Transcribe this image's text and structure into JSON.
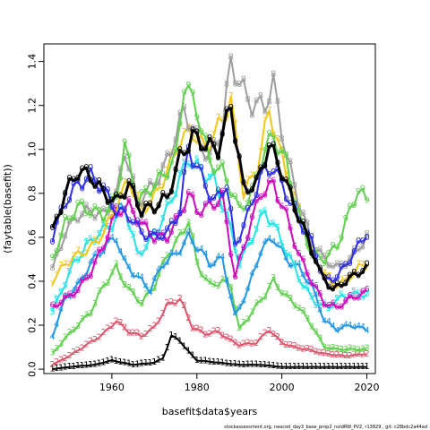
{
  "chart_data": {
    "type": "line",
    "title": "",
    "xlabel": "basefit$data$years",
    "ylabel": "(faytable(basefit))",
    "xlim": [
      1944,
      2022
    ],
    "ylim": [
      -0.02,
      1.48
    ],
    "x_ticks": [
      1960,
      1980,
      2000,
      2020
    ],
    "y_ticks": [
      0.0,
      0.2,
      0.4,
      0.6,
      0.8,
      1.0,
      1.2,
      1.4
    ],
    "x_tick_labels": [
      "1960",
      "1980",
      "2000",
      "2020"
    ],
    "y_tick_labels": [
      "0.0",
      "0.2",
      "0.4",
      "0.6",
      "0.8",
      "1.0",
      "1.2",
      "1.4"
    ],
    "grid": false,
    "legend": "none",
    "footer": "stockassessment.org, neacod_day3_base_prop2_noIdRW_PV2, r13829 , git: c28bdc2a44ad",
    "x_start": 1946,
    "x_end": 2020,
    "series": [
      {
        "label": "1",
        "color": "#000000",
        "lwd": 2,
        "knots": [
          [
            1946,
            0.0
          ],
          [
            1950,
            0.01
          ],
          [
            1956,
            0.02
          ],
          [
            1960,
            0.04
          ],
          [
            1965,
            0.02
          ],
          [
            1970,
            0.03
          ],
          [
            1972,
            0.05
          ],
          [
            1974,
            0.15
          ],
          [
            1976,
            0.13
          ],
          [
            1978,
            0.08
          ],
          [
            1980,
            0.04
          ],
          [
            1985,
            0.03
          ],
          [
            1990,
            0.02
          ],
          [
            1995,
            0.02
          ],
          [
            2000,
            0.01
          ],
          [
            2010,
            0.01
          ],
          [
            2020,
            0.01
          ]
        ]
      },
      {
        "label": "2",
        "color": "#DF536B",
        "lwd": 2,
        "knots": [
          [
            1946,
            0.02
          ],
          [
            1950,
            0.06
          ],
          [
            1954,
            0.11
          ],
          [
            1958,
            0.16
          ],
          [
            1961,
            0.22
          ],
          [
            1964,
            0.17
          ],
          [
            1967,
            0.15
          ],
          [
            1970,
            0.19
          ],
          [
            1973,
            0.29
          ],
          [
            1976,
            0.32
          ],
          [
            1979,
            0.19
          ],
          [
            1982,
            0.16
          ],
          [
            1985,
            0.17
          ],
          [
            1988,
            0.13
          ],
          [
            1990,
            0.11
          ],
          [
            1994,
            0.12
          ],
          [
            1997,
            0.18
          ],
          [
            2000,
            0.12
          ],
          [
            2003,
            0.1
          ],
          [
            2006,
            0.09
          ],
          [
            2010,
            0.07
          ],
          [
            2015,
            0.06
          ],
          [
            2020,
            0.07
          ]
        ]
      },
      {
        "label": "3",
        "color": "#61D04F",
        "lwd": 2,
        "knots": [
          [
            1946,
            0.07
          ],
          [
            1949,
            0.14
          ],
          [
            1952,
            0.2
          ],
          [
            1955,
            0.26
          ],
          [
            1958,
            0.38
          ],
          [
            1961,
            0.46
          ],
          [
            1964,
            0.36
          ],
          [
            1967,
            0.3
          ],
          [
            1970,
            0.38
          ],
          [
            1973,
            0.52
          ],
          [
            1976,
            0.6
          ],
          [
            1978,
            0.68
          ],
          [
            1980,
            0.48
          ],
          [
            1983,
            0.38
          ],
          [
            1986,
            0.4
          ],
          [
            1988,
            0.38
          ],
          [
            1990,
            0.18
          ],
          [
            1993,
            0.26
          ],
          [
            1996,
            0.34
          ],
          [
            1998,
            0.4
          ],
          [
            2001,
            0.33
          ],
          [
            2004,
            0.28
          ],
          [
            2007,
            0.2
          ],
          [
            2010,
            0.1
          ],
          [
            2013,
            0.09
          ],
          [
            2016,
            0.09
          ],
          [
            2020,
            0.09
          ]
        ]
      },
      {
        "label": "4",
        "color": "#2297E6",
        "lwd": 2,
        "knots": [
          [
            1946,
            0.15
          ],
          [
            1949,
            0.32
          ],
          [
            1952,
            0.38
          ],
          [
            1955,
            0.48
          ],
          [
            1958,
            0.55
          ],
          [
            1961,
            0.6
          ],
          [
            1963,
            0.48
          ],
          [
            1966,
            0.42
          ],
          [
            1969,
            0.36
          ],
          [
            1972,
            0.48
          ],
          [
            1975,
            0.52
          ],
          [
            1978,
            0.6
          ],
          [
            1980,
            0.56
          ],
          [
            1983,
            0.48
          ],
          [
            1986,
            0.5
          ],
          [
            1989,
            0.24
          ],
          [
            1992,
            0.36
          ],
          [
            1995,
            0.54
          ],
          [
            1998,
            0.6
          ],
          [
            2001,
            0.5
          ],
          [
            2004,
            0.46
          ],
          [
            2007,
            0.38
          ],
          [
            2010,
            0.22
          ],
          [
            2013,
            0.18
          ],
          [
            2016,
            0.2
          ],
          [
            2020,
            0.18
          ]
        ]
      },
      {
        "label": "5",
        "color": "#28E2E5",
        "lwd": 2,
        "knots": [
          [
            1946,
            0.26
          ],
          [
            1948,
            0.35
          ],
          [
            1951,
            0.48
          ],
          [
            1954,
            0.56
          ],
          [
            1957,
            0.62
          ],
          [
            1960,
            0.66
          ],
          [
            1963,
            0.74
          ],
          [
            1966,
            0.52
          ],
          [
            1969,
            0.58
          ],
          [
            1972,
            0.68
          ],
          [
            1975,
            0.82
          ],
          [
            1978,
            0.96
          ],
          [
            1981,
            0.9
          ],
          [
            1984,
            0.86
          ],
          [
            1987,
            0.7
          ],
          [
            1990,
            0.48
          ],
          [
            1993,
            0.6
          ],
          [
            1996,
            0.72
          ],
          [
            1999,
            0.62
          ],
          [
            2002,
            0.5
          ],
          [
            2005,
            0.38
          ],
          [
            2008,
            0.3
          ],
          [
            2011,
            0.28
          ],
          [
            2014,
            0.33
          ],
          [
            2017,
            0.34
          ],
          [
            2020,
            0.34
          ]
        ]
      },
      {
        "label": "6",
        "color": "#CD0BBC",
        "lwd": 2,
        "knots": [
          [
            1946,
            0.28
          ],
          [
            1949,
            0.32
          ],
          [
            1952,
            0.36
          ],
          [
            1955,
            0.44
          ],
          [
            1958,
            0.56
          ],
          [
            1961,
            0.72
          ],
          [
            1964,
            0.74
          ],
          [
            1967,
            0.66
          ],
          [
            1970,
            0.6
          ],
          [
            1973,
            0.6
          ],
          [
            1976,
            0.7
          ],
          [
            1978,
            0.8
          ],
          [
            1980,
            0.72
          ],
          [
            1983,
            0.74
          ],
          [
            1986,
            0.78
          ],
          [
            1989,
            0.42
          ],
          [
            1992,
            0.62
          ],
          [
            1995,
            0.8
          ],
          [
            1998,
            0.84
          ],
          [
            2001,
            0.7
          ],
          [
            2004,
            0.52
          ],
          [
            2007,
            0.4
          ],
          [
            2010,
            0.3
          ],
          [
            2013,
            0.28
          ],
          [
            2016,
            0.32
          ],
          [
            2020,
            0.35
          ]
        ]
      },
      {
        "label": "7",
        "color": "#F5C710",
        "lwd": 2,
        "knots": [
          [
            1946,
            0.4
          ],
          [
            1949,
            0.48
          ],
          [
            1952,
            0.52
          ],
          [
            1955,
            0.55
          ],
          [
            1958,
            0.62
          ],
          [
            1961,
            0.74
          ],
          [
            1964,
            0.86
          ],
          [
            1967,
            0.72
          ],
          [
            1970,
            0.78
          ],
          [
            1973,
            0.9
          ],
          [
            1976,
            1.04
          ],
          [
            1979,
            1.08
          ],
          [
            1982,
            1.0
          ],
          [
            1985,
            1.1
          ],
          [
            1988,
            1.22
          ],
          [
            1991,
            0.8
          ],
          [
            1994,
            0.9
          ],
          [
            1997,
            1.18
          ],
          [
            2000,
            0.96
          ],
          [
            2003,
            0.78
          ],
          [
            2006,
            0.6
          ],
          [
            2009,
            0.46
          ],
          [
            2012,
            0.38
          ],
          [
            2015,
            0.4
          ],
          [
            2018,
            0.46
          ],
          [
            2020,
            0.48
          ]
        ]
      },
      {
        "label": "8",
        "color": "#9E9E9E",
        "lwd": 2,
        "knots": [
          [
            1946,
            0.45
          ],
          [
            1949,
            0.62
          ],
          [
            1952,
            0.7
          ],
          [
            1955,
            0.72
          ],
          [
            1958,
            0.7
          ],
          [
            1961,
            0.78
          ],
          [
            1963,
            1.0
          ],
          [
            1966,
            0.76
          ],
          [
            1969,
            0.82
          ],
          [
            1972,
            0.9
          ],
          [
            1975,
            1.06
          ],
          [
            1977,
            1.18
          ],
          [
            1980,
            1.05
          ],
          [
            1983,
            0.96
          ],
          [
            1986,
            1.1
          ],
          [
            1988,
            1.4
          ],
          [
            1990,
            1.3
          ],
          [
            1993,
            1.2
          ],
          [
            1996,
            1.2
          ],
          [
            1998,
            1.3
          ],
          [
            2001,
            0.98
          ],
          [
            2004,
            0.76
          ],
          [
            2007,
            0.58
          ],
          [
            2010,
            0.5
          ],
          [
            2013,
            0.46
          ],
          [
            2016,
            0.5
          ],
          [
            2020,
            0.6
          ]
        ]
      },
      {
        "label": "9",
        "color": "#61D04F",
        "lwd": 2,
        "knots": [
          [
            1946,
            0.5
          ],
          [
            1949,
            0.66
          ],
          [
            1952,
            0.74
          ],
          [
            1955,
            0.72
          ],
          [
            1958,
            0.7
          ],
          [
            1961,
            0.78
          ],
          [
            1963,
            1.02
          ],
          [
            1966,
            0.76
          ],
          [
            1969,
            0.82
          ],
          [
            1972,
            0.88
          ],
          [
            1975,
            0.96
          ],
          [
            1977,
            1.3
          ],
          [
            1980,
            1.18
          ],
          [
            1983,
            0.94
          ],
          [
            1986,
            0.9
          ],
          [
            1988,
            0.82
          ],
          [
            1990,
            0.72
          ],
          [
            1993,
            0.8
          ],
          [
            1996,
            1.0
          ],
          [
            1998,
            1.06
          ],
          [
            2001,
            0.94
          ],
          [
            2004,
            0.7
          ],
          [
            2007,
            0.52
          ],
          [
            2010,
            0.5
          ],
          [
            2013,
            0.56
          ],
          [
            2016,
            0.72
          ],
          [
            2018,
            0.82
          ],
          [
            2020,
            0.76
          ]
        ]
      },
      {
        "label": "0",
        "color": "#2E2EE6",
        "lwd": 2,
        "knots": [
          [
            1946,
            0.6
          ],
          [
            1949,
            0.76
          ],
          [
            1952,
            0.84
          ],
          [
            1955,
            0.88
          ],
          [
            1958,
            0.82
          ],
          [
            1961,
            0.72
          ],
          [
            1964,
            0.7
          ],
          [
            1967,
            0.62
          ],
          [
            1970,
            0.6
          ],
          [
            1973,
            0.62
          ],
          [
            1976,
            0.72
          ],
          [
            1978,
            1.0
          ],
          [
            1981,
            0.88
          ],
          [
            1984,
            0.76
          ],
          [
            1987,
            0.84
          ],
          [
            1989,
            0.56
          ],
          [
            1992,
            0.7
          ],
          [
            1995,
            0.88
          ],
          [
            1998,
            0.92
          ],
          [
            2001,
            0.8
          ],
          [
            2004,
            0.68
          ],
          [
            2007,
            0.58
          ],
          [
            2010,
            0.4
          ],
          [
            2013,
            0.42
          ],
          [
            2016,
            0.5
          ],
          [
            2020,
            0.62
          ]
        ]
      },
      {
        "label": "0",
        "color": "#000000",
        "lwd": 3,
        "knots": [
          [
            1946,
            0.62
          ],
          [
            1949,
            0.8
          ],
          [
            1952,
            0.9
          ],
          [
            1955,
            0.88
          ],
          [
            1958,
            0.8
          ],
          [
            1961,
            0.76
          ],
          [
            1964,
            0.84
          ],
          [
            1967,
            0.72
          ],
          [
            1970,
            0.74
          ],
          [
            1973,
            0.78
          ],
          [
            1976,
            0.96
          ],
          [
            1979,
            1.06
          ],
          [
            1982,
            1.02
          ],
          [
            1985,
            1.0
          ],
          [
            1988,
            1.2
          ],
          [
            1991,
            0.82
          ],
          [
            1994,
            0.84
          ],
          [
            1997,
            1.02
          ],
          [
            2000,
            0.9
          ],
          [
            2003,
            0.74
          ],
          [
            2006,
            0.6
          ],
          [
            2009,
            0.44
          ],
          [
            2012,
            0.36
          ],
          [
            2015,
            0.4
          ],
          [
            2018,
            0.44
          ],
          [
            2020,
            0.46
          ]
        ]
      }
    ]
  }
}
